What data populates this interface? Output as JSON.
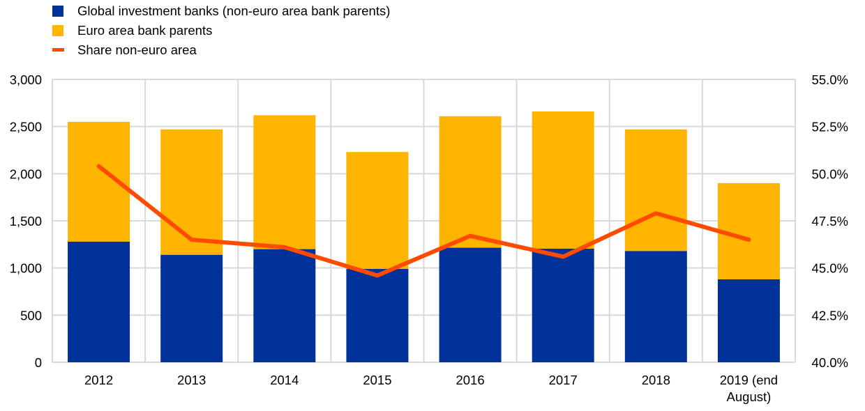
{
  "chart_data": {
    "type": "bar",
    "subtype": "stacked-bar-with-line",
    "title": "",
    "xlabel": "",
    "ylabel": "",
    "y2label": "",
    "categories": [
      "2012",
      "2013",
      "2014",
      "2015",
      "2016",
      "2017",
      "2018",
      "2019 (end August)"
    ],
    "category_lines": [
      [
        "2012"
      ],
      [
        "2013"
      ],
      [
        "2014"
      ],
      [
        "2015"
      ],
      [
        "2016"
      ],
      [
        "2017"
      ],
      [
        "2018"
      ],
      [
        "2019 (end",
        "August)"
      ]
    ],
    "series": [
      {
        "name": "Global investment banks (non-euro area bank parents)",
        "type": "bar",
        "axis": "left",
        "color": "#003299",
        "values": [
          1280,
          1140,
          1200,
          990,
          1215,
          1205,
          1180,
          880
        ]
      },
      {
        "name": "Euro area bank parents",
        "type": "bar",
        "axis": "left",
        "color": "#FFB400",
        "values": [
          1270,
          1330,
          1420,
          1240,
          1395,
          1455,
          1290,
          1020
        ]
      },
      {
        "name": "Share non-euro area",
        "type": "line",
        "axis": "right",
        "color": "#FF4B00",
        "values": [
          50.4,
          46.5,
          46.1,
          44.6,
          46.7,
          45.6,
          47.9,
          46.5
        ]
      }
    ],
    "ylim": [
      0,
      3000
    ],
    "yticks": [
      0,
      500,
      1000,
      1500,
      2000,
      2500,
      3000
    ],
    "ytick_labels": [
      "0",
      "500",
      "1,000",
      "1,500",
      "2,000",
      "2,500",
      "3,000"
    ],
    "y2lim": [
      40,
      55
    ],
    "y2ticks": [
      40,
      42.5,
      45,
      47.5,
      50,
      52.5,
      55
    ],
    "y2tick_labels": [
      "40.0%",
      "42.5%",
      "45.0%",
      "47.5%",
      "50.0%",
      "52.5%",
      "55.0%"
    ],
    "grid": true,
    "legend": "top-left",
    "colors": {
      "grid": "#D9D9D9"
    }
  },
  "legend": {
    "items": [
      {
        "label": "Global investment banks (non-euro area bank parents)",
        "color": "#003299",
        "kind": "box"
      },
      {
        "label": "Euro area bank parents",
        "color": "#FFB400",
        "kind": "box"
      },
      {
        "label": "Share non-euro area",
        "color": "#FF4B00",
        "kind": "line"
      }
    ]
  }
}
